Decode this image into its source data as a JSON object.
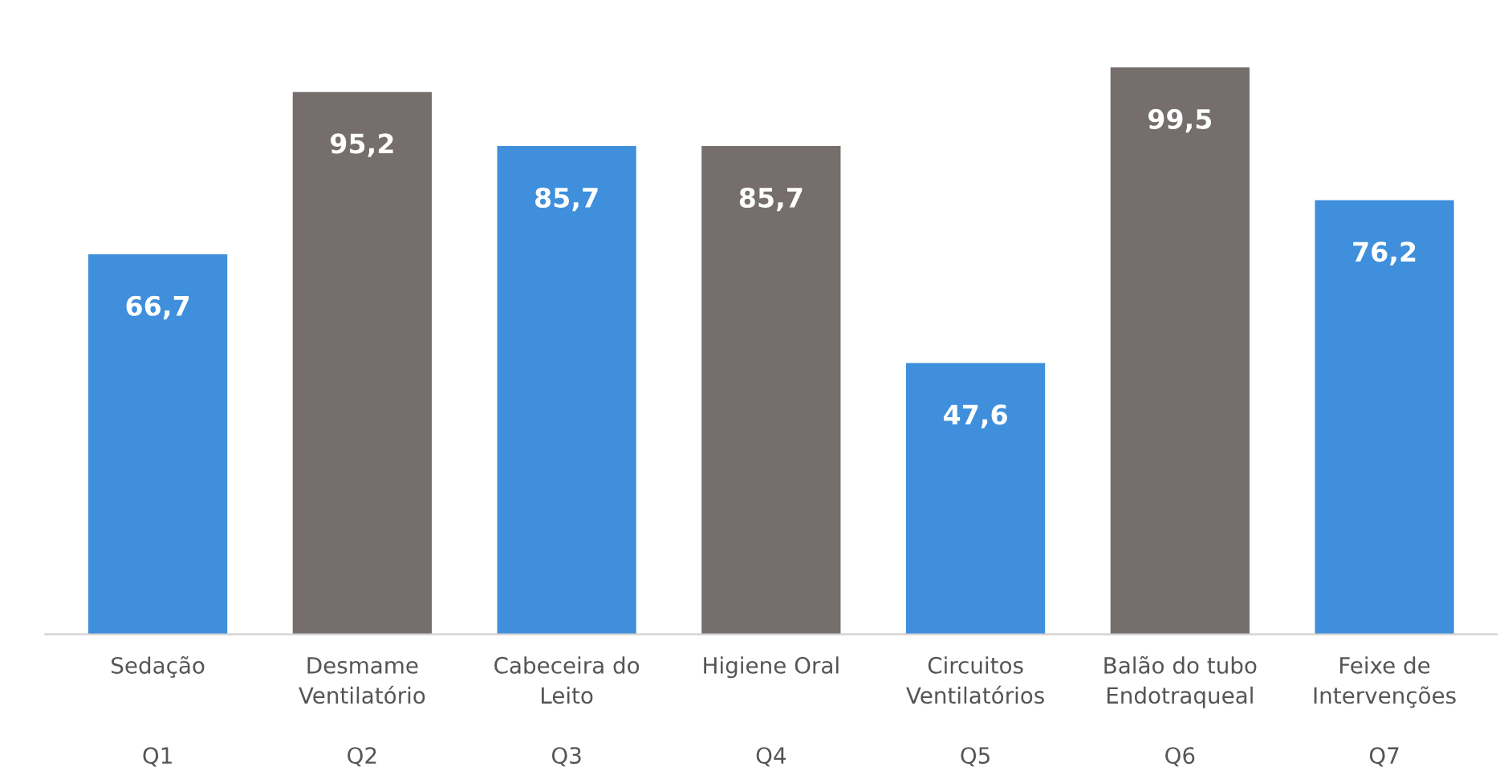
{
  "chart_data": {
    "type": "bar",
    "categories": [
      "Sedação\n\n\nQ1",
      "Desmame\nVentilatório\n\nQ2",
      "Cabeceira do\nLeito\n\nQ3",
      "Higiene Oral\n\n\nQ4",
      "Circuitos\nVentilatórios\n\nQ5",
      "Balão do tubo\nEndotraqueal\n\nQ6",
      "Feixe de\nIntervenções\n\nQ7"
    ],
    "values": [
      66.7,
      95.2,
      85.7,
      85.7,
      47.6,
      99.5,
      76.2
    ],
    "colors": [
      "#3f8fdc",
      "#766d6d",
      "#3f8fdc",
      "#766d6d",
      "#3f8fdc",
      "#766d6d",
      "#3f8fdc"
    ],
    "value_labels": [
      "66,7",
      "95,2",
      "85,7",
      "85,7",
      "47,6",
      "99,5",
      "76,2"
    ],
    "grid": false,
    "legend": false
  }
}
